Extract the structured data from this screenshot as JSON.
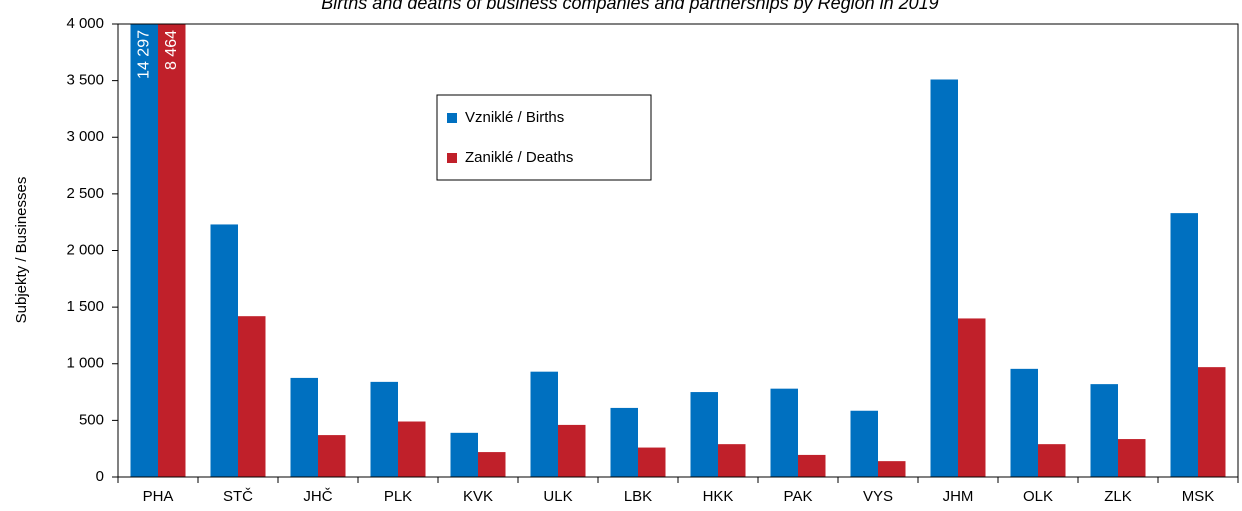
{
  "chart_data": {
    "type": "bar",
    "title": "Births and deaths of business companies and partnerships by Region in 2019",
    "y_label": "Subjekty / Businesses",
    "categories": [
      "PHA",
      "STČ",
      "JHČ",
      "PLK",
      "KVK",
      "ULK",
      "LBK",
      "HKK",
      "PAK",
      "VYS",
      "JHM",
      "OLK",
      "ZLK",
      "MSK"
    ],
    "series": [
      {
        "name": "Vzniklé / Births",
        "color": "#0070c0",
        "values": [
          14297,
          2230,
          875,
          840,
          390,
          930,
          610,
          750,
          780,
          585,
          3510,
          955,
          820,
          2330
        ],
        "value_labels": [
          "14 297",
          null,
          null,
          null,
          null,
          null,
          null,
          null,
          null,
          null,
          null,
          null,
          null,
          null
        ]
      },
      {
        "name": "Zaniklé / Deaths",
        "color": "#c0202a",
        "values": [
          8464,
          1420,
          370,
          490,
          220,
          460,
          260,
          290,
          195,
          140,
          1400,
          290,
          335,
          970
        ],
        "value_labels": [
          "8 464",
          null,
          null,
          null,
          null,
          null,
          null,
          null,
          null,
          null,
          null,
          null,
          null,
          null
        ]
      }
    ],
    "ylim": [
      0,
      4000
    ],
    "yticks": [
      0,
      500,
      {
        "value": 1000,
        "label": "1 000"
      },
      {
        "value": 1500,
        "label": "1 500"
      },
      {
        "value": 2000,
        "label": "2 000"
      },
      {
        "value": 2500,
        "label": "2 500"
      },
      {
        "value": 3000,
        "label": "3 000"
      },
      {
        "value": 3500,
        "label": "3 500"
      },
      {
        "value": 4000,
        "label": "4 000"
      }
    ],
    "grid": false,
    "legend": "upper center"
  }
}
